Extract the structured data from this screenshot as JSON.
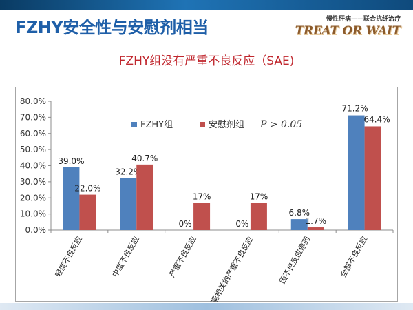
{
  "slide": {
    "title": "FZHY安全性与安慰剂相当",
    "subtitle": "FZHY组没有严重不良反应（SAE)",
    "logo_tagline": "慢性肝病——联合抗纤治疗",
    "logo_brand": "TREAT OR WAIT"
  },
  "colors": {
    "title": "#1f5fa8",
    "subtitle": "#c0262d",
    "series_fzhy": "#4f81bd",
    "series_placebo": "#c0504d"
  },
  "chart_data": {
    "type": "bar",
    "categories": [
      "轻度不良反应",
      "中度不良反应",
      "严重不良反应",
      "可能相关的严重不良反应",
      "因不良反应停药",
      "全部不良反应"
    ],
    "series": [
      {
        "name": "FZHY组",
        "values": [
          39.0,
          32.2,
          0,
          0,
          6.8,
          71.2
        ],
        "labels": [
          "39.0%",
          "32.2%",
          "0%",
          "0%",
          "6.8%",
          "71.2%"
        ]
      },
      {
        "name": "安慰剂组",
        "values": [
          22.0,
          40.7,
          17,
          17,
          1.7,
          64.4
        ],
        "labels": [
          "22.0%",
          "40.7%",
          "17%",
          "17%",
          "1.7%",
          "64.4%"
        ]
      }
    ],
    "y_ticks": [
      "0.0%",
      "10.0%",
      "20.0%",
      "30.0%",
      "40.0%",
      "50.0%",
      "60.0%",
      "70.0%",
      "80.0%"
    ],
    "ylim": [
      0,
      80
    ],
    "legend_position": "top-center",
    "annotation": "P > 0.05",
    "grid": false
  }
}
